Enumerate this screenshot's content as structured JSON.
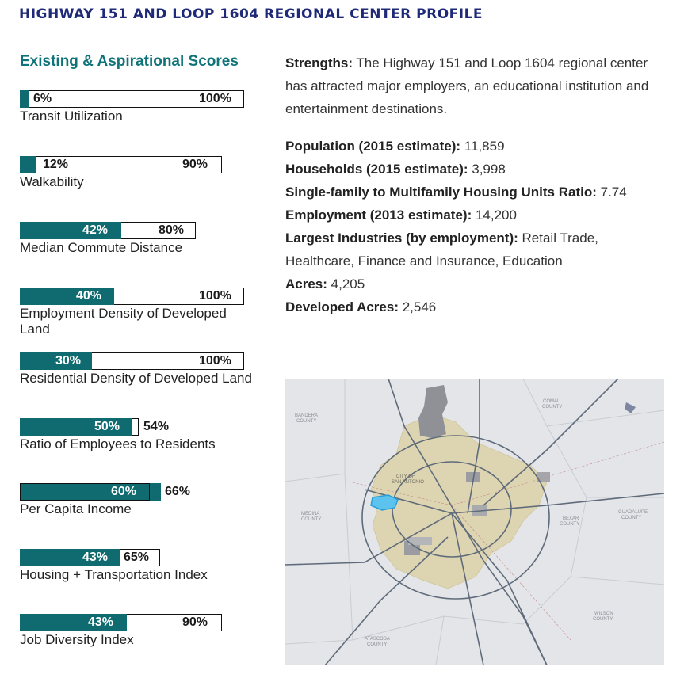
{
  "title": "HIGHWAY 151 AND LOOP 1604 REGIONAL CENTER PROFILE",
  "scores_heading": "Existing & Aspirational Scores",
  "metrics": [
    {
      "name": "Transit Utilization",
      "existing": "6%",
      "aspirational": "100%",
      "existing_value": 6,
      "aspirational_value": 100
    },
    {
      "name": "Walkability",
      "existing": "12%",
      "aspirational": "90%",
      "existing_value": 12,
      "aspirational_value": 90
    },
    {
      "name": "Median Commute Distance",
      "existing": "42%",
      "aspirational": "80%",
      "existing_value": 42,
      "aspirational_value": 80
    },
    {
      "name": "Employment Density of Developed Land",
      "existing": "40%",
      "aspirational": "100%",
      "existing_value": 40,
      "aspirational_value": 100
    },
    {
      "name": "Residential Density of Developed Land",
      "existing": "30%",
      "aspirational": "100%",
      "existing_value": 30,
      "aspirational_value": 100
    },
    {
      "name": "Ratio of Employees to Residents",
      "existing": "50%",
      "aspirational": "54%",
      "existing_value": 50,
      "aspirational_value": 54
    },
    {
      "name": "Per Capita Income",
      "existing": "60%",
      "aspirational": "66%",
      "existing_value": 60,
      "aspirational_value": 66
    },
    {
      "name": "Housing + Transportation Index",
      "existing": "43%",
      "aspirational": "65%",
      "existing_value": 43,
      "aspirational_value": 65
    },
    {
      "name": "Job Diversity Index",
      "existing": "43%",
      "aspirational": "90%",
      "existing_value": 43,
      "aspirational_value": 90
    }
  ],
  "strengths": {
    "label": "Strengths:",
    "text": " The Highway 151 and Loop 1604 regional center has attracted major employers, an educational institution and entertainment destinations."
  },
  "facts": [
    {
      "label": "Population (2015 estimate):",
      "value": " 11,859"
    },
    {
      "label": "Households (2015 estimate):",
      "value": " 3,998"
    },
    {
      "label": "Single-family to Multifamily Housing Units Ratio:",
      "value": " 7.74"
    },
    {
      "label": "Employment (2013 estimate):",
      "value": " 14,200"
    },
    {
      "label": "Largest Industries (by employment):",
      "value": " Retail Trade,"
    },
    {
      "label": "",
      "value": "Healthcare, Finance and Insurance, Education"
    },
    {
      "label": "Acres:",
      "value": " 4,205"
    },
    {
      "label": "Developed Acres:",
      "value": " 2,546"
    }
  ],
  "map": {
    "labels": {
      "bandera": [
        "BANDERA",
        "COUNTY"
      ],
      "comal": [
        "COMAL",
        "COUNTY"
      ],
      "medina": [
        "MEDINA",
        "COUNTY"
      ],
      "bexar": [
        "BEXAR",
        "COUNTY"
      ],
      "guadalupe": [
        "GUADALUPE",
        "COUNTY"
      ],
      "wilson": [
        "WILSON",
        "COUNTY"
      ],
      "atascosa": [
        "ATASCOSA",
        "COUNTY"
      ],
      "city": [
        "CITY OF",
        "SAN ANTONIO"
      ]
    },
    "colors": {
      "background": "#e3e5e8",
      "city": "#ddd5b1",
      "highlight": "#5bc3ee",
      "roads": "#5f6b7a",
      "military": "#8f9196"
    }
  }
}
